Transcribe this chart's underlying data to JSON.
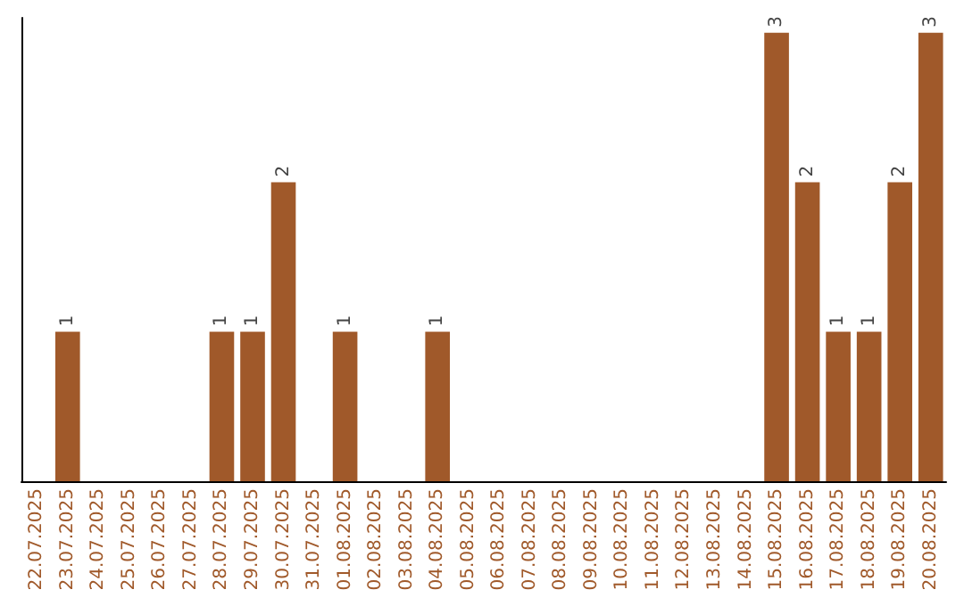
{
  "chart_data": {
    "type": "bar",
    "categories": [
      "22.07.2025",
      "23.07.2025",
      "24.07.2025",
      "25.07.2025",
      "26.07.2025",
      "27.07.2025",
      "28.07.2025",
      "29.07.2025",
      "30.07.2025",
      "31.07.2025",
      "01.08.2025",
      "02.08.2025",
      "03.08.2025",
      "04.08.2025",
      "05.08.2025",
      "06.08.2025",
      "07.08.2025",
      "08.08.2025",
      "09.08.2025",
      "10.08.2025",
      "11.08.2025",
      "12.08.2025",
      "13.08.2025",
      "14.08.2025",
      "15.08.2025",
      "16.08.2025",
      "17.08.2025",
      "18.08.2025",
      "19.08.2025",
      "20.08.2025"
    ],
    "values": [
      0,
      1,
      0,
      0,
      0,
      0,
      1,
      1,
      2,
      0,
      1,
      0,
      0,
      1,
      0,
      0,
      0,
      0,
      0,
      0,
      0,
      0,
      0,
      0,
      3,
      2,
      1,
      1,
      2,
      3
    ],
    "value_labels": [
      null,
      "1",
      null,
      null,
      null,
      null,
      "1",
      "1",
      "2",
      null,
      "1",
      null,
      null,
      "1",
      null,
      null,
      null,
      null,
      null,
      null,
      null,
      null,
      null,
      null,
      "3",
      "2",
      "1",
      "1",
      "2",
      "3"
    ],
    "color": "#a0592a",
    "ylim": [
      0,
      3.1
    ],
    "tick_labels": "x"
  }
}
